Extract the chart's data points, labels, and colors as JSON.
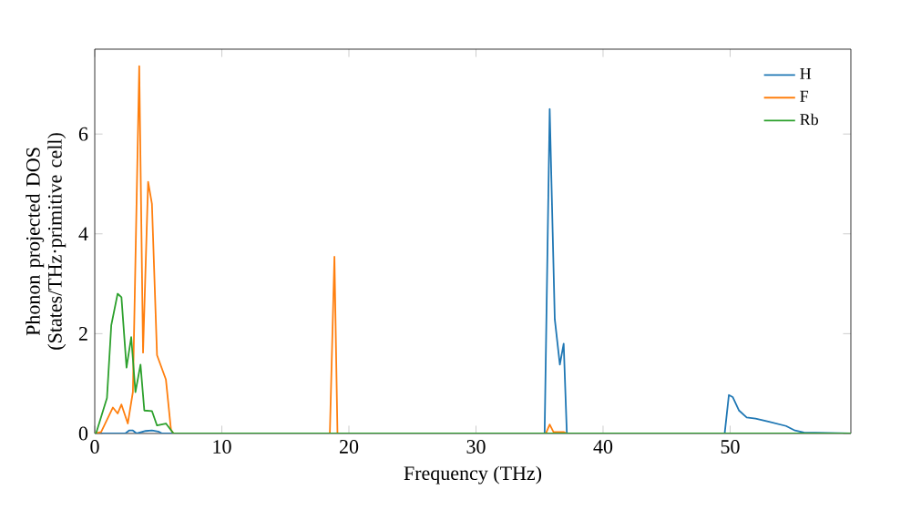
{
  "chart_data": {
    "type": "line",
    "xlabel": "Frequency (THz)",
    "ylabel": "Phonon projected DOS\n(States/THz·primitive cell)",
    "xlim": [
      0,
      59.5
    ],
    "ylim": [
      0,
      7.7
    ],
    "xticks": [
      0,
      10,
      20,
      30,
      40,
      50
    ],
    "yticks": [
      0,
      2,
      4,
      6
    ],
    "legend": "top right",
    "grid": false,
    "series": [
      {
        "name": "H",
        "color": "#1f77b4",
        "x": [
          0,
          2.4,
          2.7,
          3.0,
          3.3,
          4.0,
          4.5,
          5.0,
          5.3,
          35.4,
          35.8,
          36.2,
          36.6,
          36.9,
          37.15,
          49.57,
          49.9,
          50.2,
          50.7,
          51.3,
          52.0,
          53.0,
          54.4,
          55.1,
          55.8,
          59.5
        ],
        "values": [
          0,
          0,
          0.06,
          0.06,
          0,
          0.05,
          0.06,
          0.04,
          0,
          0,
          6.5,
          2.29,
          1.38,
          1.8,
          0,
          0,
          0.77,
          0.73,
          0.46,
          0.32,
          0.3,
          0.24,
          0.15,
          0.06,
          0.02,
          0
        ]
      },
      {
        "name": "F",
        "color": "#ff7f0e",
        "x": [
          0,
          0.5,
          1.43,
          1.8,
          2.1,
          2.6,
          3.0,
          3.5,
          3.8,
          4.2,
          4.5,
          4.9,
          5.6,
          6.0,
          6.2,
          18.5,
          18.86,
          19.1,
          35.5,
          35.8,
          36.1,
          36.9,
          37.15,
          59.5
        ],
        "values": [
          0,
          0.03,
          0.52,
          0.4,
          0.58,
          0.2,
          0.83,
          7.36,
          1.62,
          5.04,
          4.6,
          1.57,
          1.08,
          0.07,
          0,
          0,
          3.54,
          0,
          0,
          0.18,
          0.03,
          0.03,
          0,
          0
        ]
      },
      {
        "name": "Rb",
        "color": "#2ca02c",
        "x": [
          0,
          0.1,
          0.96,
          1.3,
          1.8,
          2.1,
          2.5,
          2.87,
          3.2,
          3.6,
          3.9,
          4.5,
          4.9,
          5.6,
          6.2,
          59.5
        ],
        "values": [
          0,
          0,
          0.71,
          2.17,
          2.8,
          2.73,
          1.32,
          1.93,
          0.83,
          1.38,
          0.46,
          0.45,
          0.16,
          0.2,
          0,
          0
        ]
      }
    ]
  }
}
